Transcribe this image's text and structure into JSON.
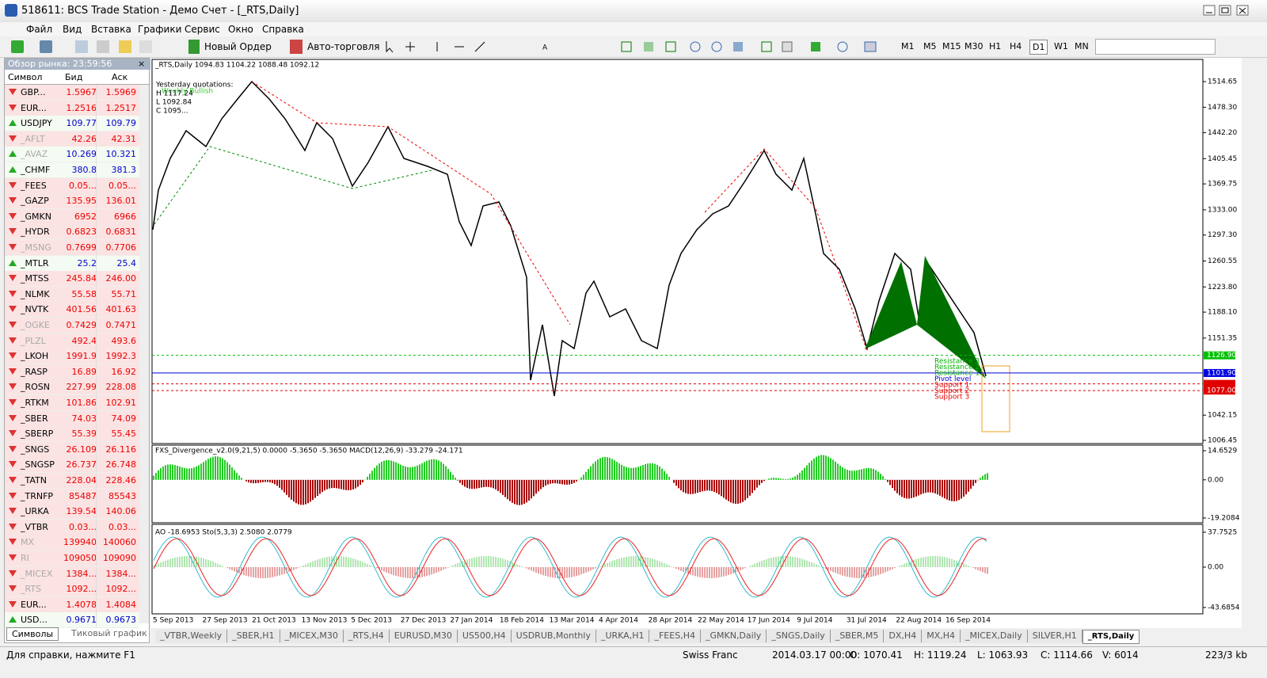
{
  "window": {
    "title": "518611: BCS Trade Station - Демо Счет - [_RTS,Daily]"
  },
  "menu": [
    "Файл",
    "Вид",
    "Вставка",
    "Графики",
    "Сервис",
    "Окно",
    "Справка"
  ],
  "toolbar": {
    "new_order": "Новый Ордер",
    "auto_trading": "Авто-торговля",
    "timeframes": [
      "M1",
      "M5",
      "M15",
      "M30",
      "H1",
      "H4",
      "D1",
      "W1",
      "MN"
    ],
    "active_timeframe": "D1"
  },
  "market_watch": {
    "title": "Обзор рынка: 23:59:56",
    "columns": [
      "Символ",
      "Бид",
      "Аск"
    ],
    "rows": [
      {
        "symbol": "GBP...",
        "bid": "1.5967",
        "ask": "1.5969",
        "dir": "down",
        "dim": false
      },
      {
        "symbol": "EUR...",
        "bid": "1.2516",
        "ask": "1.2517",
        "dir": "down",
        "dim": false
      },
      {
        "symbol": "USDJPY",
        "bid": "109.77",
        "ask": "109.79",
        "dir": "up",
        "dim": false
      },
      {
        "symbol": "_AFLT",
        "bid": "42.26",
        "ask": "42.31",
        "dir": "down",
        "dim": true
      },
      {
        "symbol": "_AVAZ",
        "bid": "10.269",
        "ask": "10.321",
        "dir": "up",
        "dim": true
      },
      {
        "symbol": "_CHMF",
        "bid": "380.8",
        "ask": "381.3",
        "dir": "up",
        "dim": false
      },
      {
        "symbol": "_FEES",
        "bid": "0.05...",
        "ask": "0.05...",
        "dir": "down",
        "dim": false
      },
      {
        "symbol": "_GAZP",
        "bid": "135.95",
        "ask": "136.01",
        "dir": "down",
        "dim": false
      },
      {
        "symbol": "_GMKN",
        "bid": "6952",
        "ask": "6966",
        "dir": "down",
        "dim": false
      },
      {
        "symbol": "_HYDR",
        "bid": "0.6823",
        "ask": "0.6831",
        "dir": "down",
        "dim": false
      },
      {
        "symbol": "_MSNG",
        "bid": "0.7699",
        "ask": "0.7706",
        "dir": "down",
        "dim": true
      },
      {
        "symbol": "_MTLR",
        "bid": "25.2",
        "ask": "25.4",
        "dir": "up",
        "dim": false
      },
      {
        "symbol": "_MTSS",
        "bid": "245.84",
        "ask": "246.00",
        "dir": "down",
        "dim": false
      },
      {
        "symbol": "_NLMK",
        "bid": "55.58",
        "ask": "55.71",
        "dir": "down",
        "dim": false
      },
      {
        "symbol": "_NVTK",
        "bid": "401.56",
        "ask": "401.63",
        "dir": "down",
        "dim": false
      },
      {
        "symbol": "_OGKE",
        "bid": "0.7429",
        "ask": "0.7471",
        "dir": "down",
        "dim": true
      },
      {
        "symbol": "_PLZL",
        "bid": "492.4",
        "ask": "493.6",
        "dir": "down",
        "dim": true
      },
      {
        "symbol": "_LKOH",
        "bid": "1991.9",
        "ask": "1992.3",
        "dir": "down",
        "dim": false
      },
      {
        "symbol": "_RASP",
        "bid": "16.89",
        "ask": "16.92",
        "dir": "down",
        "dim": false
      },
      {
        "symbol": "_ROSN",
        "bid": "227.99",
        "ask": "228.08",
        "dir": "down",
        "dim": false
      },
      {
        "symbol": "_RTKM",
        "bid": "101.86",
        "ask": "102.91",
        "dir": "down",
        "dim": false
      },
      {
        "symbol": "_SBER",
        "bid": "74.03",
        "ask": "74.09",
        "dir": "down",
        "dim": false
      },
      {
        "symbol": "_SBERP",
        "bid": "55.39",
        "ask": "55.45",
        "dir": "down",
        "dim": false
      },
      {
        "symbol": "_SNGS",
        "bid": "26.109",
        "ask": "26.116",
        "dir": "down",
        "dim": false
      },
      {
        "symbol": "_SNGSP",
        "bid": "26.737",
        "ask": "26.748",
        "dir": "down",
        "dim": false
      },
      {
        "symbol": "_TATN",
        "bid": "228.04",
        "ask": "228.46",
        "dir": "down",
        "dim": false
      },
      {
        "symbol": "_TRNFP",
        "bid": "85487",
        "ask": "85543",
        "dir": "down",
        "dim": false
      },
      {
        "symbol": "_URKA",
        "bid": "139.54",
        "ask": "140.06",
        "dir": "down",
        "dim": false
      },
      {
        "symbol": "_VTBR",
        "bid": "0.03...",
        "ask": "0.03...",
        "dir": "down",
        "dim": false
      },
      {
        "symbol": "MX",
        "bid": "139940",
        "ask": "140060",
        "dir": "down",
        "dim": true
      },
      {
        "symbol": "RI",
        "bid": "109050",
        "ask": "109090",
        "dir": "down",
        "dim": true
      },
      {
        "symbol": "_MICEX",
        "bid": "1384...",
        "ask": "1384...",
        "dir": "down",
        "dim": true
      },
      {
        "symbol": "_RTS",
        "bid": "1092...",
        "ask": "1092...",
        "dir": "down",
        "dim": true
      },
      {
        "symbol": "EUR...",
        "bid": "1.4078",
        "ask": "1.4084",
        "dir": "down",
        "dim": false
      },
      {
        "symbol": "USD...",
        "bid": "0.9671",
        "ask": "0.9673",
        "dir": "up",
        "dim": false
      }
    ],
    "tabs": [
      "Символы",
      "Тиковый график"
    ]
  },
  "chart": {
    "header": "_RTS,Daily  1094.83 1104.22 1088.48 1092.12",
    "quotes": [
      "Yesterday quotations:",
      "H 1117.24",
      "L 1092.84",
      "C 1095..."
    ],
    "signal": "Weekly Bullish",
    "price_ticks": [
      1514.65,
      {
        "value": 1478.3,
        "label": "1478.30"
      },
      {
        "value": 1442.2,
        "label": "1442.20"
      },
      1405.45,
      1369.75,
      {
        "value": 1333,
        "label": "1333.00"
      },
      {
        "value": 1297.3,
        "label": "1297.30"
      },
      1260.55,
      {
        "value": 1223.8,
        "label": "1223.80"
      },
      {
        "value": 1188.1,
        "label": "1188.10"
      },
      1151.35,
      1042.15,
      1006.45
    ],
    "price_markers": [
      {
        "value": 1126.9,
        "label": "1126.90",
        "color": "#00c000"
      },
      {
        "value": 1101.9,
        "label": "1101.90",
        "color": "#0000e0"
      },
      {
        "value": 1086.51,
        "color": "#e00000"
      },
      {
        "value": 1077,
        "label": "1077.00",
        "color": "#e00000"
      }
    ],
    "pivot_labels": [
      {
        "text": "Resistance 3",
        "color": "#00b000"
      },
      {
        "text": "Resistance 2",
        "color": "#00b000"
      },
      {
        "text": "Resistance 1",
        "color": "#00b000"
      },
      {
        "text": "Pivot level",
        "color": "#0000e0"
      },
      {
        "text": "Support 1",
        "color": "#e00000"
      },
      {
        "text": "Support 2",
        "color": "#e00000"
      },
      {
        "text": "Support 3",
        "color": "#e00000"
      }
    ],
    "indicator1": {
      "header": "FXS_Divergence_v2.0(9,21,5) 0.0000 -5.3650 -5.3650  MACD(12,26,9) -33.279 -24.171",
      "ticks": [
        14.6529,
        {
          "value": 0,
          "label": "0.00"
        },
        -19.2084
      ]
    },
    "indicator2": {
      "header": "AO -18.6953 Sto(5,3,3) 2.5080 2.0779",
      "ticks": [
        37.7525,
        {
          "value": 0,
          "label": "0.00"
        },
        -43.6854
      ]
    },
    "dates": [
      "5 Sep 2013",
      "27 Sep 2013",
      "21 Oct 2013",
      "13 Nov 2013",
      "5 Dec 2013",
      "27 Dec 2013",
      "27 Jan 2014",
      "18 Feb 2014",
      "13 Mar 2014",
      "4 Apr 2014",
      "28 Apr 2014",
      "22 May 2014",
      "17 Jun 2014",
      "9 Jul 2014",
      "31 Jul 2014",
      "22 Aug 2014",
      "16 Sep 2014"
    ]
  },
  "chart_tabs": [
    "_VTBR,Weekly",
    "_SBER,H1",
    "_MICEX,M30",
    "_RTS,H4",
    "EURUSD,M30",
    "US500,H4",
    "USDRUB,Monthly",
    "_URKA,H1",
    "_FEES,H4",
    "_GMKN,Daily",
    "_SNGS,Daily",
    "_SBER,M5",
    "DX,H4",
    "MX,H4",
    "_MICEX,Daily",
    "SILVER,H1",
    "_RTS,Daily"
  ],
  "active_chart_tab": 16,
  "status": [
    "Для справки, нажмите F1",
    "Swiss Franc",
    "2014.03.17 00:00",
    "O: 1070.41",
    "H: 1119.24",
    "L: 1063.93",
    "C: 1114.66",
    "V: 6014",
    "223/3 kb"
  ]
}
